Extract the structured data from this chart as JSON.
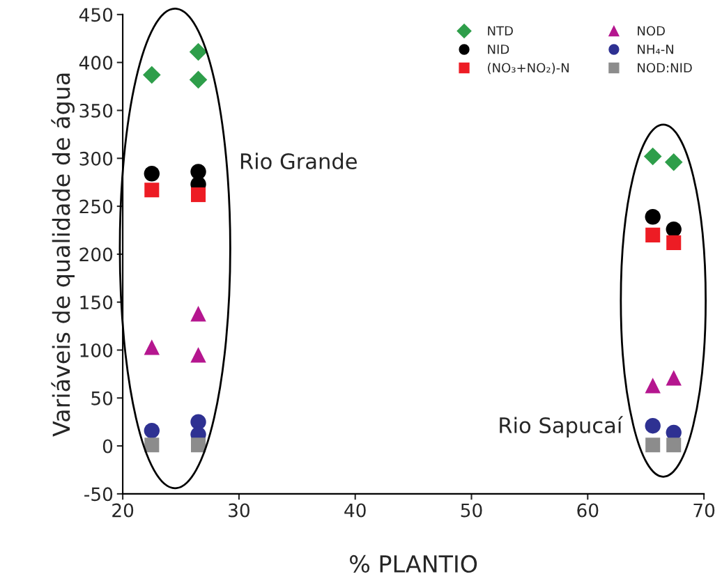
{
  "chart_data": {
    "type": "scatter",
    "xlabel": "% PLANTIO",
    "ylabel": "Variáveis de qualidade de água",
    "xlim": [
      20,
      70
    ],
    "xticks": [
      20,
      30,
      40,
      50,
      60,
      70
    ],
    "ylim": [
      -50,
      450
    ],
    "yticks": [
      -50,
      0,
      50,
      100,
      150,
      200,
      250,
      300,
      350,
      400,
      450
    ],
    "grid": false,
    "legend": "top right",
    "series": [
      {
        "name": "NTD",
        "color": "#2e9e4a",
        "marker": "diamond",
        "x": [
          22.5,
          26.5,
          26.5,
          65.6,
          67.4
        ],
        "values": [
          387,
          411,
          382,
          302,
          296
        ]
      },
      {
        "name": "NID",
        "color": "#000000",
        "marker": "circle",
        "x": [
          22.5,
          26.5,
          26.5,
          65.6,
          67.4
        ],
        "values": [
          284,
          286,
          273,
          239,
          226
        ]
      },
      {
        "name": "(NO₃+NO₂)-N",
        "color": "#ed1c24",
        "marker": "square",
        "x": [
          22.5,
          26.5,
          65.6,
          67.4
        ],
        "values": [
          267,
          262,
          220,
          212
        ]
      },
      {
        "name": "NOD",
        "color": "#b5168f",
        "marker": "triangle",
        "x": [
          22.5,
          26.5,
          26.5,
          65.6,
          67.4
        ],
        "values": [
          103,
          138,
          95,
          63,
          71
        ]
      },
      {
        "name": "NH₄-N",
        "color": "#2e3192",
        "marker": "circle",
        "x": [
          22.5,
          26.5,
          26.5,
          65.6,
          67.4
        ],
        "values": [
          16,
          25,
          12,
          21,
          14
        ]
      },
      {
        "name": "NOD:NID",
        "color": "#8c8c8c",
        "marker": "square",
        "x": [
          22.5,
          26.5,
          65.6,
          67.4
        ],
        "values": [
          1,
          1,
          1,
          1
        ]
      }
    ],
    "annotations": [
      "Rio Grande",
      "Rio Sapucaí"
    ]
  }
}
